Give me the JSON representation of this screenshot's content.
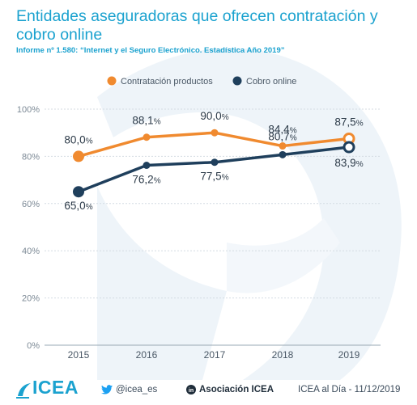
{
  "header": {
    "title": "Entidades aseguradoras que ofrecen contratación y cobro online",
    "subtitle": "Informe nº 1.580: “Internet y el Seguro Electrónico. Estadística Año 2019”"
  },
  "colors": {
    "series_a": "#f08a2f",
    "series_b": "#1f3f5c",
    "accent": "#1ba2cf",
    "watermark": "#eef4f9"
  },
  "chart_data": {
    "type": "line",
    "x": [
      "2015",
      "2016",
      "2017",
      "2018",
      "2019"
    ],
    "ylim": [
      0,
      100
    ],
    "yticks": [
      {
        "value": 0,
        "label": "0%"
      },
      {
        "value": 20,
        "label": "20%"
      },
      {
        "value": 40,
        "label": "40%"
      },
      {
        "value": 60,
        "label": "60%"
      },
      {
        "value": 80,
        "label": "80%"
      },
      {
        "value": 100,
        "label": "100%"
      }
    ],
    "grid": true,
    "legend_position": "top",
    "series": [
      {
        "name": "Contratación productos",
        "values": [
          80.0,
          88.1,
          90.0,
          84.4,
          87.5
        ],
        "labels": [
          "80,0%",
          "88,1%",
          "90,0%",
          "84,4%",
          "87,5%"
        ]
      },
      {
        "name": "Cobro online",
        "values": [
          65.0,
          76.2,
          77.5,
          80.7,
          83.9
        ],
        "labels": [
          "65,0%",
          "76,2%",
          "77,5%",
          "80,7%",
          "83,9%"
        ]
      }
    ]
  },
  "footer": {
    "logo_text": "ICEA",
    "twitter": "@icea_es",
    "linkedin": "Asociación ICEA",
    "date": "ICEA al Día - 11/12/2019",
    "twitter_icon": "twitter-bird-icon",
    "linkedin_icon": "linkedin-icon",
    "logo_icon": "icea-logo-icon"
  }
}
